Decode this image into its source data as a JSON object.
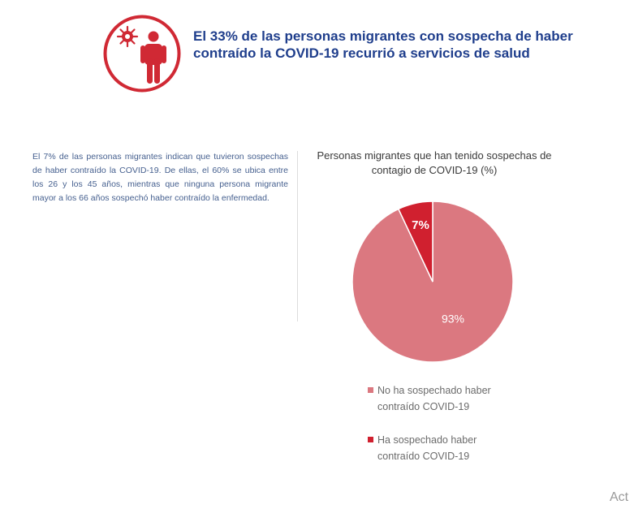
{
  "header": {
    "title": "El 33% de las personas migrantes con sospecha de haber contraído la COVID-19 recurrió a servicios de salud",
    "icon": "person-virus-icon",
    "accent_color": "#d02934"
  },
  "body": {
    "text": "El 7% de las personas migrantes indican que tuvieron sospechas de haber contraído la COVID-19. De ellas, el 60% se ubica entre los 26 y los 45 años, mientras que ninguna persona migrante mayor a los 66 años sospechó haber contraído la enfermedad."
  },
  "chart_data": {
    "type": "pie",
    "title": "Personas migrantes que han tenido sospechas de contagio de COVID-19 (%)",
    "slices": [
      {
        "label": "No ha sospechado haber contraído COVID-19",
        "value": 93,
        "display": "93%",
        "color": "#db7880"
      },
      {
        "label": "Ha sospechado haber contraído COVID-19",
        "value": 7,
        "display": "7%",
        "color": "#d0202f"
      }
    ],
    "legend_position": "bottom"
  },
  "watermark": {
    "text": "Act"
  }
}
